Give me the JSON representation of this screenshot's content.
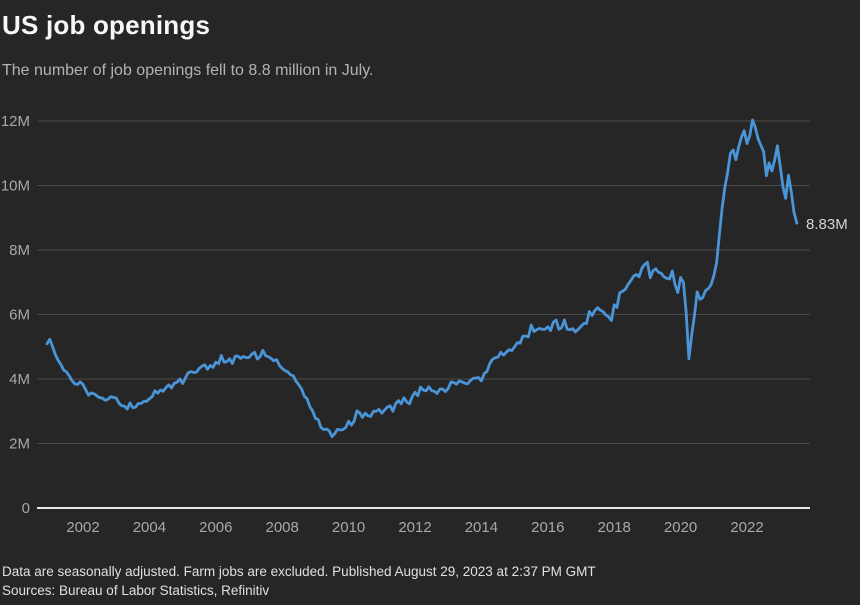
{
  "header": {
    "title": "US job openings",
    "subtitle": "The number of job openings fell to 8.8 million in July."
  },
  "footer": {
    "note": "Data are seasonally adjusted. Farm jobs are excluded. Published August 29, 2023 at 2:37 PM GMT",
    "sources": "Sources: Bureau of Labor Statistics, Refinitiv"
  },
  "chart_data": {
    "type": "line",
    "title": "US job openings",
    "series_name": "US job openings, seasonally adjusted",
    "unit": "millions",
    "start_month": "2000-12",
    "end_month": "2023-07",
    "frequency": "monthly",
    "end_label": "8.83M",
    "ylim": [
      0,
      12
    ],
    "grid": "horizontal",
    "legend": "none",
    "y_ticks": [
      {
        "value": 0,
        "label": "0"
      },
      {
        "value": 2,
        "label": "2M"
      },
      {
        "value": 4,
        "label": "4M"
      },
      {
        "value": 6,
        "label": "6M"
      },
      {
        "value": 8,
        "label": "8M"
      },
      {
        "value": 10,
        "label": "10M"
      },
      {
        "value": 12,
        "label": "12M"
      }
    ],
    "x_ticks": [
      2002,
      2004,
      2006,
      2008,
      2010,
      2012,
      2014,
      2016,
      2018,
      2020,
      2022
    ],
    "values_millions": [
      5.09,
      5.23,
      5.0,
      4.76,
      4.58,
      4.45,
      4.28,
      4.22,
      4.1,
      3.95,
      3.85,
      3.83,
      3.91,
      3.83,
      3.66,
      3.5,
      3.57,
      3.54,
      3.48,
      3.42,
      3.41,
      3.34,
      3.37,
      3.45,
      3.43,
      3.41,
      3.25,
      3.17,
      3.16,
      3.07,
      3.26,
      3.11,
      3.13,
      3.24,
      3.24,
      3.31,
      3.31,
      3.39,
      3.45,
      3.64,
      3.56,
      3.66,
      3.62,
      3.74,
      3.82,
      3.72,
      3.87,
      3.9,
      4.0,
      3.86,
      4.03,
      4.19,
      4.23,
      4.2,
      4.21,
      4.33,
      4.4,
      4.44,
      4.3,
      4.42,
      4.36,
      4.52,
      4.47,
      4.73,
      4.52,
      4.54,
      4.63,
      4.48,
      4.71,
      4.71,
      4.64,
      4.7,
      4.66,
      4.67,
      4.77,
      4.83,
      4.62,
      4.69,
      4.89,
      4.72,
      4.69,
      4.64,
      4.56,
      4.6,
      4.42,
      4.33,
      4.26,
      4.22,
      4.13,
      4.1,
      3.93,
      3.82,
      3.69,
      3.47,
      3.39,
      3.14,
      3.01,
      2.78,
      2.74,
      2.5,
      2.43,
      2.45,
      2.39,
      2.21,
      2.31,
      2.44,
      2.42,
      2.43,
      2.5,
      2.69,
      2.57,
      2.69,
      3.01,
      2.95,
      2.81,
      2.94,
      2.86,
      2.84,
      3.0,
      3.0,
      3.06,
      2.94,
      3.04,
      3.13,
      3.17,
      3.0,
      3.23,
      3.33,
      3.23,
      3.42,
      3.29,
      3.23,
      3.45,
      3.59,
      3.48,
      3.75,
      3.66,
      3.63,
      3.76,
      3.64,
      3.62,
      3.55,
      3.69,
      3.69,
      3.61,
      3.71,
      3.91,
      3.89,
      3.84,
      3.94,
      3.91,
      3.87,
      3.85,
      3.95,
      4.02,
      4.03,
      4.04,
      3.94,
      4.17,
      4.23,
      4.47,
      4.61,
      4.66,
      4.68,
      4.83,
      4.74,
      4.83,
      4.91,
      4.88,
      5.0,
      5.13,
      5.11,
      5.33,
      5.33,
      5.31,
      5.67,
      5.47,
      5.53,
      5.57,
      5.54,
      5.54,
      5.62,
      5.5,
      5.76,
      5.83,
      5.54,
      5.59,
      5.83,
      5.54,
      5.53,
      5.56,
      5.46,
      5.54,
      5.63,
      5.72,
      5.72,
      6.09,
      5.97,
      6.12,
      6.21,
      6.13,
      6.09,
      5.98,
      5.93,
      5.81,
      6.3,
      6.22,
      6.67,
      6.72,
      6.78,
      6.93,
      7.05,
      7.19,
      7.24,
      7.17,
      7.44,
      7.55,
      7.62,
      7.14,
      7.35,
      7.42,
      7.31,
      7.28,
      7.17,
      7.12,
      7.1,
      7.35,
      6.92,
      6.68,
      7.15,
      7.0,
      6.09,
      4.63,
      5.37,
      5.96,
      6.7,
      6.47,
      6.52,
      6.74,
      6.8,
      6.92,
      7.2,
      7.6,
      8.45,
      9.3,
      9.95,
      10.4,
      11.0,
      11.1,
      10.8,
      11.2,
      11.5,
      11.7,
      11.3,
      11.55,
      12.03,
      11.8,
      11.45,
      11.25,
      11.05,
      10.3,
      10.7,
      10.45,
      10.8,
      11.23,
      10.6,
      9.95,
      9.6,
      10.32,
      9.8,
      9.17,
      8.83
    ],
    "colors": {
      "line": "#4a94d8",
      "background": "#262626",
      "gridline": "#4a4a4a",
      "axis_line": "#e8e8e8",
      "tick_text": "#a8a8a8",
      "title_text": "#f7f7f7",
      "subtitle_text": "#b3b3b3",
      "annotation_text": "#d4d4d4",
      "footer_text": "#e0e0e0"
    }
  }
}
